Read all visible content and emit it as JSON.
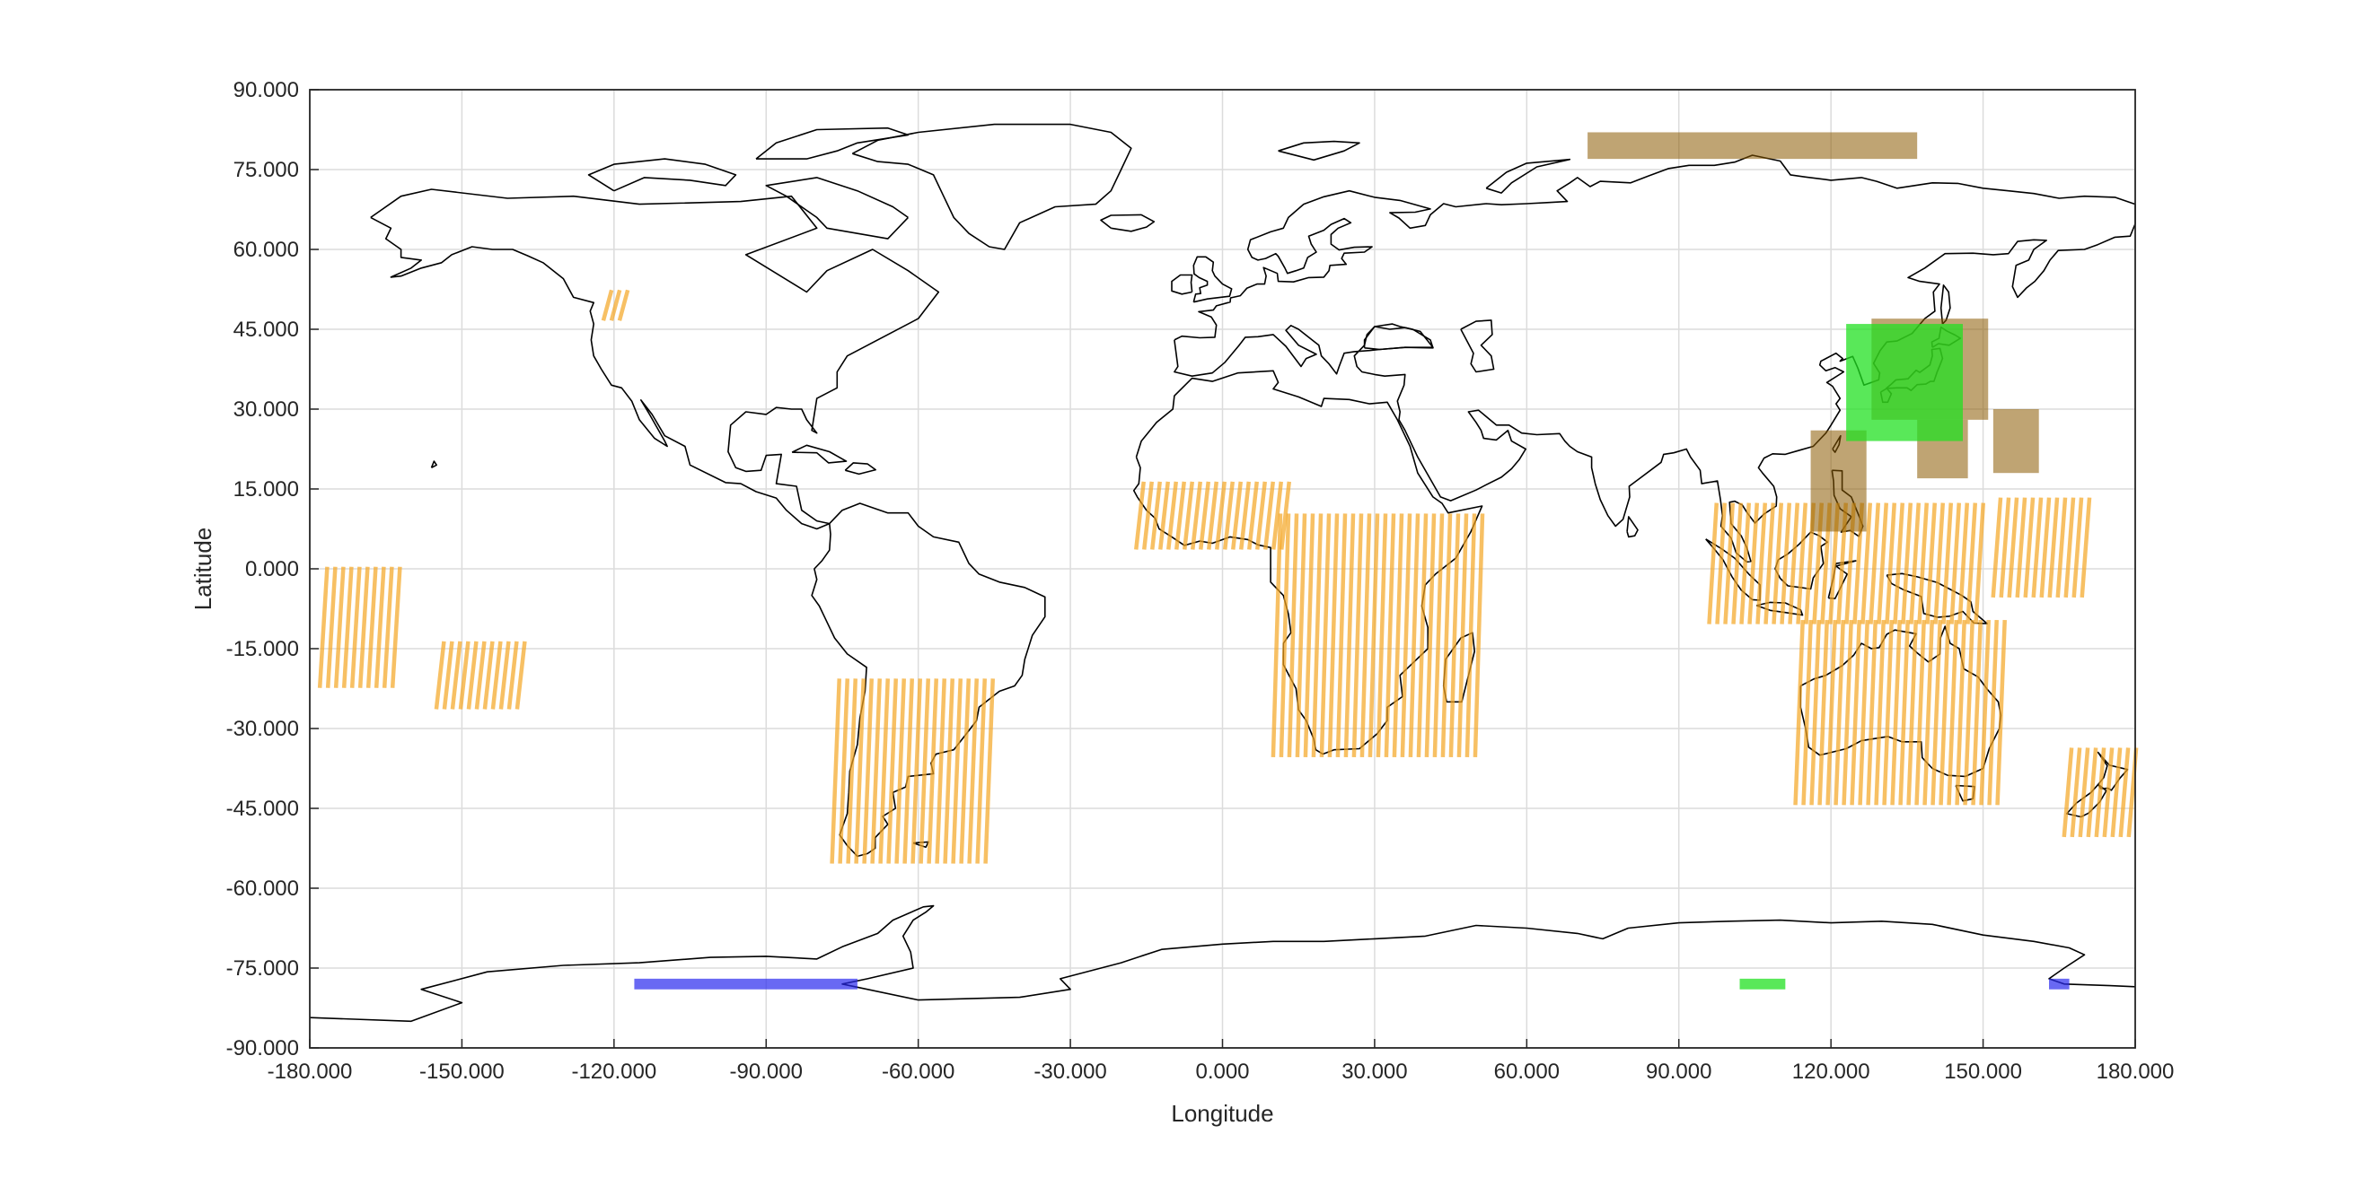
{
  "chart_data": {
    "type": "map",
    "xlabel": "Longitude",
    "ylabel": "Latitude",
    "xlim": [
      -180,
      180
    ],
    "ylim": [
      -90,
      90
    ],
    "grid": true,
    "xticks": [
      "-180.000",
      "-150.000",
      "-120.000",
      "-90.000",
      "-60.000",
      "-30.000",
      "0.000",
      "30.000",
      "60.000",
      "90.000",
      "120.000",
      "150.000",
      "180.000"
    ],
    "yticks": [
      "90.000",
      "75.000",
      "60.000",
      "45.000",
      "30.000",
      "15.000",
      "0.000",
      "-15.000",
      "-30.000",
      "-45.000",
      "-60.000",
      "-75.000",
      "-90.000"
    ],
    "colors": {
      "orange": "#f5a623",
      "brown": "#8a5a00",
      "green": "#22e022",
      "blue": "#2a2aee",
      "coast": "#000000",
      "grid": "#dcdcdc"
    },
    "coverage_regions": [
      {
        "color": "orange",
        "kind": "hatched",
        "lon": [
          -17,
          12
        ],
        "lat": [
          4,
          16
        ]
      },
      {
        "color": "orange",
        "kind": "hatched",
        "lon": [
          10,
          51
        ],
        "lat": [
          -35,
          10
        ]
      },
      {
        "color": "orange",
        "kind": "hatched",
        "lon": [
          -77,
          -46
        ],
        "lat": [
          -55,
          -21
        ]
      },
      {
        "color": "orange",
        "kind": "hatched",
        "lon": [
          113,
          154
        ],
        "lat": [
          -44,
          -10
        ]
      },
      {
        "color": "orange",
        "kind": "hatched",
        "lon": [
          96,
          150
        ],
        "lat": [
          -10,
          12
        ]
      },
      {
        "color": "orange",
        "kind": "hatched",
        "lon": [
          152,
          170
        ],
        "lat": [
          -5,
          13
        ]
      },
      {
        "color": "orange",
        "kind": "hatched",
        "lon": [
          -122,
          -118
        ],
        "lat": [
          47,
          52
        ]
      },
      {
        "color": "orange",
        "kind": "hatched",
        "lon": [
          -155,
          -139
        ],
        "lat": [
          -26,
          -14
        ]
      },
      {
        "color": "orange",
        "kind": "hatched",
        "lon": [
          -178,
          -163
        ],
        "lat": [
          -22,
          0
        ]
      },
      {
        "color": "orange",
        "kind": "hatched",
        "lon": [
          166,
          180
        ],
        "lat": [
          -50,
          -34
        ]
      },
      {
        "color": "brown",
        "kind": "block",
        "lon": [
          72,
          137
        ],
        "lat": [
          77,
          82
        ]
      },
      {
        "color": "brown",
        "kind": "block",
        "lon": [
          128,
          151
        ],
        "lat": [
          28,
          47
        ]
      },
      {
        "color": "brown",
        "kind": "block",
        "lon": [
          116,
          127
        ],
        "lat": [
          7,
          26
        ]
      },
      {
        "color": "brown",
        "kind": "block",
        "lon": [
          137,
          147
        ],
        "lat": [
          17,
          28
        ]
      },
      {
        "color": "brown",
        "kind": "block",
        "lon": [
          152,
          161
        ],
        "lat": [
          18,
          30
        ]
      },
      {
        "color": "green",
        "kind": "block",
        "lon": [
          123,
          146
        ],
        "lat": [
          24,
          46
        ]
      },
      {
        "color": "green",
        "kind": "block",
        "lon": [
          102,
          111
        ],
        "lat": [
          -79,
          -77
        ]
      },
      {
        "color": "blue",
        "kind": "block",
        "lon": [
          -116,
          -72
        ],
        "lat": [
          -79,
          -77
        ]
      },
      {
        "color": "blue",
        "kind": "block",
        "lon": [
          163,
          167
        ],
        "lat": [
          -79,
          -77
        ]
      }
    ]
  }
}
